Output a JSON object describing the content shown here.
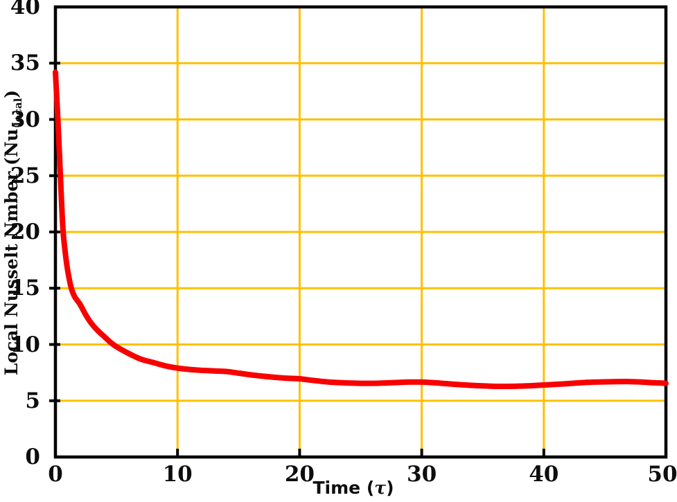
{
  "chart_data": {
    "type": "line",
    "xlabel_prefix": "Time (",
    "xlabel_symbol": "τ",
    "xlabel_suffix": ")",
    "ylabel_main": "Local Nusselt Nmber (Nu",
    "ylabel_sub": "local",
    "ylabel_suffix": ")",
    "xlim": [
      0,
      50
    ],
    "ylim": [
      0,
      40
    ],
    "x_ticks": [
      0,
      10,
      20,
      30,
      40,
      50
    ],
    "y_ticks": [
      0,
      5,
      10,
      15,
      20,
      25,
      30,
      35,
      40
    ],
    "x_gridlines": [
      10,
      20,
      30,
      40
    ],
    "y_gridlines": [
      5,
      10,
      15,
      20,
      25,
      30,
      35
    ],
    "grid_on": true,
    "legend": "none",
    "colors": {
      "grid": "#FFC000",
      "line": "#F80000",
      "axis": "#000000",
      "text": "#0d0d0d",
      "background": "#ffffff"
    },
    "series": [
      {
        "x": [
          0,
          0.2,
          0.4,
          0.6,
          0.8,
          1,
          1.3,
          1.6,
          2,
          2.5,
          3,
          3.5,
          4,
          4.5,
          5,
          6,
          7,
          8,
          9,
          10,
          11,
          12,
          13,
          14,
          15,
          16,
          17,
          18,
          19,
          20,
          21,
          22,
          23,
          24,
          25,
          26,
          27,
          28,
          29,
          30,
          31,
          32,
          33,
          34,
          35,
          36,
          37,
          38,
          39,
          40,
          41,
          42,
          43,
          44,
          45,
          46,
          47,
          48,
          49,
          50
        ],
        "y": [
          34.2,
          30,
          25.2,
          20.5,
          18.2,
          16.6,
          15,
          14.2,
          13.6,
          12.6,
          11.8,
          11.2,
          10.7,
          10.2,
          9.8,
          9.2,
          8.7,
          8.4,
          8.1,
          7.9,
          7.78,
          7.7,
          7.65,
          7.6,
          7.45,
          7.3,
          7.18,
          7.08,
          7.0,
          6.95,
          6.82,
          6.7,
          6.62,
          6.58,
          6.55,
          6.55,
          6.58,
          6.62,
          6.66,
          6.66,
          6.6,
          6.52,
          6.44,
          6.37,
          6.32,
          6.28,
          6.28,
          6.3,
          6.34,
          6.4,
          6.46,
          6.52,
          6.6,
          6.65,
          6.68,
          6.7,
          6.7,
          6.66,
          6.6,
          6.55
        ]
      }
    ]
  }
}
